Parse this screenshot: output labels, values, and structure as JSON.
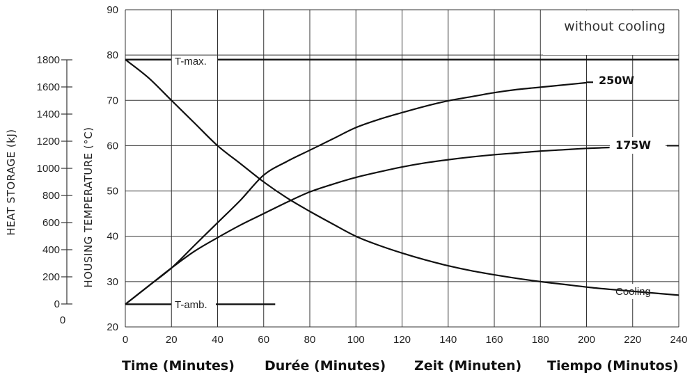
{
  "chart_data": {
    "type": "line",
    "corner_label": "without cooling",
    "xlabel": "Time  (Minutes)     Durée  (Minutes)     Zeit  (Minuten)     Tiempo  (Minutos)",
    "xlabels": [
      "Time  (Minutes)",
      "Durée  (Minutes)",
      "Zeit  (Minuten)",
      "Tiempo  (Minutos)"
    ],
    "ylabel": "HOUSING TEMPERATURE (°C)",
    "y2label": "HEAT STORAGE (kJ)",
    "x_ticks": [
      0,
      20,
      40,
      60,
      80,
      100,
      120,
      140,
      160,
      180,
      200,
      220,
      240
    ],
    "y_ticks": [
      20,
      30,
      40,
      50,
      60,
      70,
      80,
      90
    ],
    "y2_ticks": [
      "1800",
      "1600",
      "1400",
      "1200",
      "1000",
      "800",
      "600",
      "400",
      "200",
      "0"
    ],
    "y2_extra": "0",
    "xlim": [
      0,
      240
    ],
    "ylim": [
      20,
      90
    ],
    "grid": true,
    "t_max": {
      "label": "T-max.",
      "value": 79
    },
    "t_amb": {
      "label": "T-amb.",
      "value": 25,
      "x_end": 65
    },
    "series": [
      {
        "name": "250W",
        "x": [
          0,
          10,
          20,
          30,
          40,
          50,
          60,
          70,
          80,
          90,
          100,
          110,
          120,
          130,
          140,
          150,
          160,
          170,
          180,
          190,
          200
        ],
        "values": [
          25,
          29,
          33,
          38,
          43,
          48,
          53.5,
          56.5,
          59,
          61.5,
          64,
          65.8,
          67.3,
          68.7,
          69.9,
          70.8,
          71.7,
          72.4,
          72.9,
          73.4,
          73.9
        ]
      },
      {
        "name": "175W",
        "x": [
          0,
          10,
          20,
          30,
          40,
          50,
          60,
          70,
          80,
          90,
          100,
          110,
          120,
          130,
          140,
          150,
          160,
          170,
          180,
          190,
          200,
          210
        ],
        "values": [
          25,
          29,
          33,
          36.7,
          39.7,
          42.5,
          45,
          47.5,
          49.8,
          51.5,
          53,
          54.2,
          55.3,
          56.2,
          56.9,
          57.5,
          58,
          58.4,
          58.8,
          59.1,
          59.4,
          59.6
        ]
      },
      {
        "name": "Cooling",
        "x": [
          0,
          10,
          20,
          30,
          40,
          50,
          60,
          70,
          80,
          90,
          100,
          110,
          120,
          130,
          140,
          150,
          160,
          170,
          180,
          190,
          200,
          210,
          240
        ],
        "values": [
          79,
          75,
          70,
          65,
          60,
          56,
          52,
          48.5,
          45.5,
          42.7,
          40,
          38,
          36.3,
          34.8,
          33.5,
          32.4,
          31.5,
          30.7,
          30,
          29.4,
          28.8,
          28.3,
          27
        ]
      }
    ]
  }
}
